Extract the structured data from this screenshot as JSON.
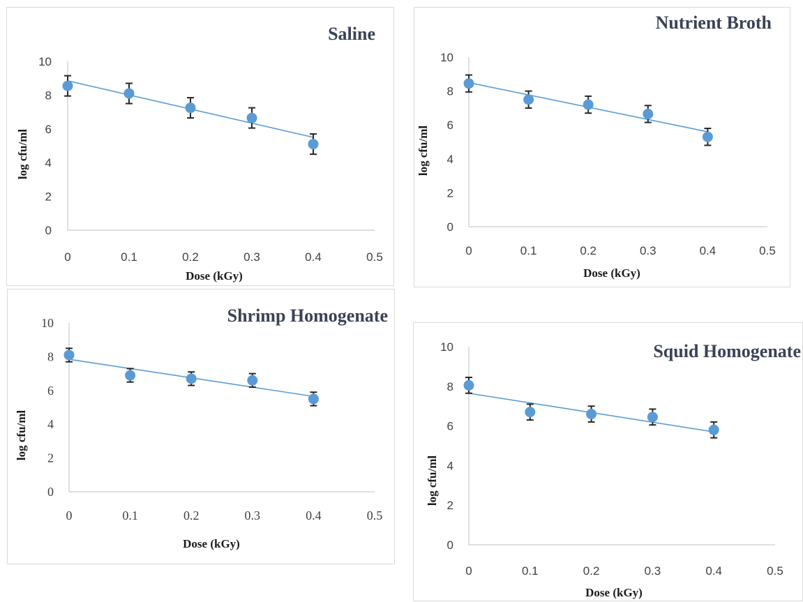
{
  "colors": {
    "marker": "#5b9bd5",
    "trendline": "#5b9bd5",
    "errorbar": "#262626"
  },
  "chart_data": [
    {
      "type": "scatter",
      "title": "Saline",
      "xlabel": "Dose (kGy)",
      "ylabel": "log cfu/ml",
      "xlim": [
        0,
        0.5
      ],
      "ylim": [
        0,
        10
      ],
      "xticks": [
        "0",
        "0.1",
        "0.2",
        "0.3",
        "0.4",
        "0.5"
      ],
      "yticks": [
        "0",
        "2",
        "4",
        "6",
        "8",
        "10"
      ],
      "x": [
        0,
        0.1,
        0.2,
        0.3,
        0.4
      ],
      "y": [
        8.55,
        8.1,
        7.25,
        6.65,
        5.1
      ],
      "error": [
        0.6,
        0.6,
        0.6,
        0.6,
        0.6
      ],
      "trendline": {
        "x": [
          0,
          0.4
        ],
        "y": [
          8.85,
          5.5
        ]
      },
      "grid": false,
      "legend": "none"
    },
    {
      "type": "scatter",
      "title": "Nutrient Broth",
      "xlabel": "Dose (kGy)",
      "ylabel": "log cfu/ml",
      "xlim": [
        0,
        0.5
      ],
      "ylim": [
        0,
        10
      ],
      "xticks": [
        "0",
        "0.1",
        "0.2",
        "0.3",
        "0.4",
        "0.5"
      ],
      "yticks": [
        "0",
        "2",
        "4",
        "6",
        "8",
        "10"
      ],
      "x": [
        0,
        0.1,
        0.2,
        0.3,
        0.4
      ],
      "y": [
        8.45,
        7.5,
        7.2,
        6.65,
        5.3
      ],
      "error": [
        0.5,
        0.5,
        0.5,
        0.5,
        0.5
      ],
      "trendline": {
        "x": [
          0,
          0.4
        ],
        "y": [
          8.5,
          5.6
        ]
      },
      "grid": false,
      "legend": "none"
    },
    {
      "type": "scatter",
      "title": "Shrimp Homogenate",
      "xlabel": "Dose (kGy)",
      "ylabel": "log cfu/ml",
      "xlim": [
        0,
        0.5
      ],
      "ylim": [
        0,
        10
      ],
      "xticks": [
        "0",
        "0.1",
        "0.2",
        "0.3",
        "0.4",
        "0.5"
      ],
      "yticks": [
        "0",
        "2",
        "4",
        "6",
        "8",
        "10"
      ],
      "x": [
        0,
        0.1,
        0.2,
        0.3,
        0.4
      ],
      "y": [
        8.1,
        6.9,
        6.7,
        6.6,
        5.5
      ],
      "error": [
        0.4,
        0.4,
        0.4,
        0.4,
        0.4
      ],
      "trendline": {
        "x": [
          0,
          0.4
        ],
        "y": [
          7.85,
          5.65
        ]
      },
      "grid": false,
      "legend": "none"
    },
    {
      "type": "scatter",
      "title": "Squid Homogenate",
      "xlabel": "Dose (kGy)",
      "ylabel": "log cfu/ml",
      "xlim": [
        0,
        0.5
      ],
      "ylim": [
        0,
        10
      ],
      "xticks": [
        "0",
        "0.1",
        "0.2",
        "0.3",
        "0.4",
        "0.5"
      ],
      "yticks": [
        "0",
        "2",
        "4",
        "6",
        "8",
        "10"
      ],
      "x": [
        0,
        0.1,
        0.2,
        0.3,
        0.4
      ],
      "y": [
        8.05,
        6.7,
        6.6,
        6.45,
        5.8
      ],
      "error": [
        0.4,
        0.4,
        0.4,
        0.4,
        0.4
      ],
      "trendline": {
        "x": [
          0,
          0.4
        ],
        "y": [
          7.65,
          5.7
        ]
      },
      "grid": false,
      "legend": "none"
    }
  ]
}
